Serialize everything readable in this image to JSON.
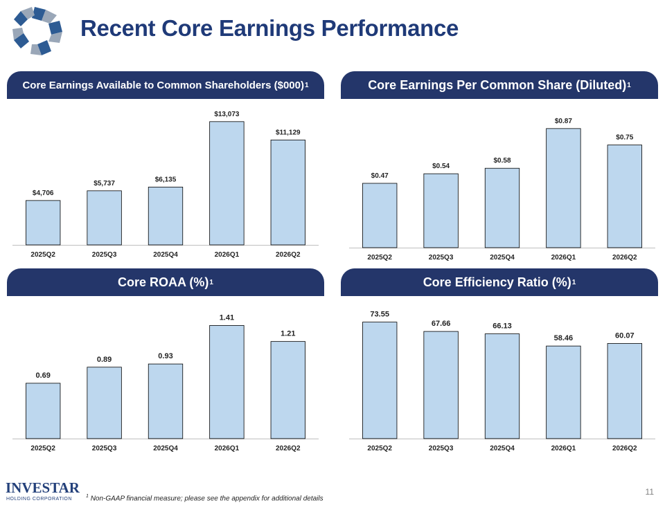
{
  "slide": {
    "title": "Recent Core Earnings Performance",
    "footnote_marker": "1",
    "footnote_text": "Non-GAAP financial measure; please see the appendix for additional details",
    "page_number": "11",
    "logo_name": "INVESTAR",
    "logo_subtitle": "HOLDING CORPORATION"
  },
  "panels": [
    {
      "title": "Core Earnings Available to Common Shareholders ($000)",
      "superscript": "1"
    },
    {
      "title": "Core Earnings Per Common Share (Diluted) ",
      "superscript": "1"
    },
    {
      "title": "Core ROAA (%) ",
      "superscript": "1"
    },
    {
      "title": "Core Efficiency Ratio (%) ",
      "superscript": "1"
    }
  ],
  "colors": {
    "header_bg": "#24366a",
    "title": "#1f3a78",
    "bar_fill": "#bdd7ee",
    "bar_stroke": "#000000"
  },
  "chart_data": [
    {
      "type": "bar",
      "title": "Core Earnings Available to Common Shareholders ($000)",
      "categories": [
        "2025Q2",
        "2025Q3",
        "2025Q4",
        "2026Q1",
        "2026Q2"
      ],
      "values": [
        4706,
        5737,
        6135,
        13073,
        11129
      ],
      "labels": [
        "$4,706",
        "$5,737",
        "$6,135",
        "$13,073",
        "$11,129"
      ],
      "ylim": [
        0,
        13500
      ],
      "grid": false,
      "legend": "none"
    },
    {
      "type": "bar",
      "title": "Core Earnings Per Common Share (Diluted)",
      "categories": [
        "2025Q2",
        "2025Q3",
        "2025Q4",
        "2026Q1",
        "2026Q2"
      ],
      "values": [
        0.47,
        0.54,
        0.58,
        0.87,
        0.75
      ],
      "labels": [
        "$0.47",
        "$0.54",
        "$0.58",
        "$0.87",
        "$0.75"
      ],
      "ylim": [
        0,
        0.95
      ],
      "grid": false,
      "legend": "none"
    },
    {
      "type": "bar",
      "title": "Core ROAA (%)",
      "categories": [
        "2025Q2",
        "2025Q3",
        "2025Q4",
        "2026Q1",
        "2026Q2"
      ],
      "values": [
        0.69,
        0.89,
        0.93,
        1.41,
        1.21
      ],
      "labels": [
        "0.69",
        "0.89",
        "0.93",
        "1.41",
        "1.21"
      ],
      "ylim": [
        0,
        1.5
      ],
      "grid": false,
      "legend": "none"
    },
    {
      "type": "bar",
      "title": "Core Efficiency Ratio (%)",
      "categories": [
        "2025Q2",
        "2025Q3",
        "2025Q4",
        "2026Q1",
        "2026Q2"
      ],
      "values": [
        73.55,
        67.66,
        66.13,
        58.46,
        60.07
      ],
      "labels": [
        "73.55",
        "67.66",
        "66.13",
        "58.46",
        "60.07"
      ],
      "ylim": [
        0,
        76
      ],
      "grid": false,
      "legend": "none"
    }
  ]
}
